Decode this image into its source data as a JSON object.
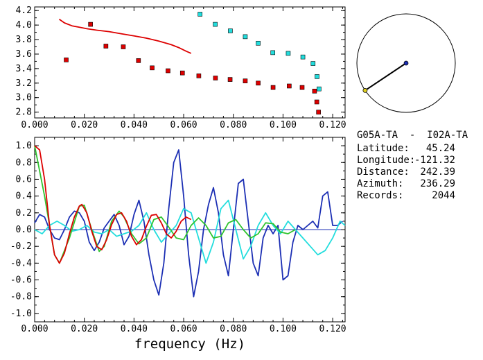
{
  "station_pair": "G05A-TA  -  I02A-TA",
  "info": [
    {
      "label": "Latitude:",
      "value": "45.24"
    },
    {
      "label": "Longitude:",
      "value": "-121.32"
    },
    {
      "label": "Distance:",
      "value": "242.39"
    },
    {
      "label": "Azimuth:",
      "value": "236.29"
    },
    {
      "label": "Records:",
      "value": "2044"
    }
  ],
  "colors": {
    "red": "#dd0000",
    "cyan": "#22dddd",
    "blue": "#1c2fb4",
    "green": "#2ec42e",
    "marker_outline": "#000000"
  },
  "chart_data": [
    {
      "type": "scatter",
      "panel": "top",
      "title": "",
      "xlabel": "",
      "ylabel": "",
      "xlim": [
        0.0,
        0.125
      ],
      "ylim": [
        2.72,
        4.25
      ],
      "xticks": [
        "0.000",
        "0.020",
        "0.040",
        "0.060",
        "0.080",
        "0.100",
        "0.120"
      ],
      "yticks": [
        "2.8",
        "3.0",
        "3.2",
        "3.4",
        "3.6",
        "3.8",
        "4.0",
        "4.2"
      ],
      "series": [
        {
          "style": "markers",
          "color": "red",
          "x": [
            0.0127,
            0.0225,
            0.0287,
            0.0357,
            0.0418,
            0.0473,
            0.0537,
            0.0595,
            0.0661,
            0.0728,
            0.0787,
            0.0848,
            0.09,
            0.096,
            0.1025,
            0.1077,
            0.1127,
            0.1136,
            0.1143
          ],
          "y": [
            3.52,
            4.01,
            3.71,
            3.7,
            3.51,
            3.41,
            3.37,
            3.34,
            3.3,
            3.27,
            3.25,
            3.23,
            3.2,
            3.14,
            3.16,
            3.14,
            3.09,
            2.94,
            2.8
          ]
        },
        {
          "style": "markers",
          "color": "cyan",
          "x": [
            0.0666,
            0.0727,
            0.0788,
            0.0848,
            0.09,
            0.0959,
            0.1021,
            0.108,
            0.1121,
            0.1137,
            0.1145
          ],
          "y": [
            4.15,
            4.01,
            3.92,
            3.84,
            3.75,
            3.62,
            3.61,
            3.56,
            3.47,
            3.29,
            3.12
          ]
        },
        {
          "style": "line",
          "color": "red",
          "x": [
            0.0099,
            0.012,
            0.015,
            0.018,
            0.021,
            0.025,
            0.03,
            0.035,
            0.04,
            0.045,
            0.05,
            0.055,
            0.058,
            0.061,
            0.063
          ],
          "y": [
            4.08,
            4.03,
            3.99,
            3.97,
            3.95,
            3.93,
            3.91,
            3.88,
            3.85,
            3.82,
            3.78,
            3.73,
            3.69,
            3.64,
            3.61
          ]
        }
      ]
    },
    {
      "type": "line",
      "panel": "bottom",
      "title": "",
      "xlabel": "frequency (Hz)",
      "ylabel": "",
      "xlim": [
        0.0,
        0.125
      ],
      "ylim": [
        -1.1,
        1.1
      ],
      "xticks": [
        "0.000",
        "0.020",
        "0.040",
        "0.060",
        "0.080",
        "0.100",
        "0.120"
      ],
      "yticks": [
        "-1.0",
        "-0.8",
        "-0.6",
        "-0.4",
        "-0.2",
        "0.0",
        "0.2",
        "0.4",
        "0.6",
        "0.8",
        "1.0"
      ],
      "series": [
        {
          "color": "blue",
          "x": [
            0.0,
            0.002,
            0.004,
            0.006,
            0.008,
            0.01,
            0.012,
            0.014,
            0.016,
            0.018,
            0.02,
            0.022,
            0.024,
            0.026,
            0.028,
            0.03,
            0.032,
            0.034,
            0.036,
            0.038,
            0.04,
            0.042,
            0.044,
            0.046,
            0.048,
            0.05,
            0.052,
            0.054,
            0.056,
            0.058,
            0.06,
            0.062,
            0.064,
            0.066,
            0.068,
            0.07,
            0.072,
            0.074,
            0.076,
            0.078,
            0.08,
            0.082,
            0.084,
            0.086,
            0.088,
            0.09,
            0.092,
            0.094,
            0.096,
            0.098,
            0.1,
            0.102,
            0.104,
            0.106,
            0.108,
            0.11,
            0.112,
            0.114,
            0.116,
            0.118,
            0.12,
            0.122,
            0.124
          ],
          "y": [
            0.08,
            0.18,
            0.15,
            0.0,
            -0.1,
            -0.12,
            0.0,
            0.15,
            0.22,
            0.2,
            0.1,
            -0.15,
            -0.25,
            -0.15,
            0.02,
            0.1,
            0.18,
            0.05,
            -0.18,
            -0.08,
            0.18,
            0.35,
            0.1,
            -0.3,
            -0.6,
            -0.78,
            -0.4,
            0.25,
            0.8,
            0.95,
            0.4,
            -0.3,
            -0.8,
            -0.5,
            0.0,
            0.3,
            0.5,
            0.2,
            -0.3,
            -0.55,
            0.0,
            0.55,
            0.6,
            0.1,
            -0.4,
            -0.55,
            -0.1,
            0.05,
            -0.05,
            0.05,
            -0.6,
            -0.55,
            -0.15,
            0.05,
            0.0,
            0.05,
            0.1,
            0.02,
            0.4,
            0.45,
            0.05,
            0.05,
            0.1
          ]
        },
        {
          "color": "cyan",
          "x": [
            0.0,
            0.003,
            0.006,
            0.009,
            0.012,
            0.015,
            0.018,
            0.021,
            0.024,
            0.027,
            0.03,
            0.033,
            0.036,
            0.039,
            0.042,
            0.045,
            0.048,
            0.051,
            0.054,
            0.057,
            0.06,
            0.063,
            0.066,
            0.069,
            0.072,
            0.075,
            0.078,
            0.081,
            0.084,
            0.087,
            0.09,
            0.093,
            0.096,
            0.099,
            0.102,
            0.105,
            0.108,
            0.111,
            0.114,
            0.117,
            0.12,
            0.123,
            0.125
          ],
          "y": [
            0.0,
            -0.05,
            0.05,
            0.1,
            0.05,
            -0.02,
            0.0,
            0.05,
            -0.03,
            -0.05,
            0.0,
            -0.08,
            -0.05,
            -0.02,
            0.05,
            0.2,
            0.0,
            -0.15,
            -0.05,
            0.05,
            0.25,
            0.2,
            -0.1,
            -0.4,
            -0.15,
            0.25,
            0.35,
            0.0,
            -0.35,
            -0.2,
            0.05,
            0.2,
            0.05,
            -0.05,
            0.1,
            0.0,
            -0.1,
            -0.2,
            -0.3,
            -0.25,
            -0.1,
            0.1,
            0.05
          ]
        },
        {
          "color": "green",
          "x": [
            0.0,
            0.004,
            0.008,
            0.01,
            0.014,
            0.018,
            0.02,
            0.023,
            0.026,
            0.028,
            0.031,
            0.034,
            0.036,
            0.039,
            0.042,
            0.045,
            0.048,
            0.051,
            0.054,
            0.057,
            0.06,
            0.063,
            0.066,
            0.069,
            0.072,
            0.075,
            0.078,
            0.081,
            0.084,
            0.087,
            0.09,
            0.093,
            0.096,
            0.099,
            0.102,
            0.105
          ],
          "y": [
            1.0,
            0.4,
            -0.3,
            -0.4,
            -0.1,
            0.28,
            0.29,
            0.0,
            -0.26,
            -0.2,
            0.1,
            0.22,
            0.15,
            -0.05,
            -0.17,
            -0.1,
            0.12,
            0.15,
            0.03,
            -0.1,
            -0.12,
            0.05,
            0.14,
            0.05,
            -0.1,
            -0.08,
            0.08,
            0.12,
            0.0,
            -0.1,
            -0.05,
            0.08,
            0.07,
            -0.03,
            -0.05,
            0.0
          ]
        },
        {
          "color": "red",
          "x": [
            0.0,
            0.002,
            0.004,
            0.006,
            0.008,
            0.01,
            0.012,
            0.014,
            0.016,
            0.018,
            0.019,
            0.021,
            0.023,
            0.025,
            0.027,
            0.029,
            0.031,
            0.033,
            0.035,
            0.037,
            0.039,
            0.041,
            0.043,
            0.045,
            0.047,
            0.049,
            0.051,
            0.053,
            0.055,
            0.057,
            0.059,
            0.061,
            0.063
          ],
          "y": [
            1.0,
            0.95,
            0.6,
            0.05,
            -0.3,
            -0.4,
            -0.28,
            -0.05,
            0.15,
            0.28,
            0.3,
            0.2,
            -0.02,
            -0.2,
            -0.24,
            -0.12,
            0.06,
            0.18,
            0.2,
            0.1,
            -0.08,
            -0.18,
            -0.12,
            0.04,
            0.17,
            0.18,
            0.08,
            -0.05,
            -0.1,
            -0.02,
            0.1,
            0.15,
            0.12
          ]
        }
      ]
    }
  ]
}
